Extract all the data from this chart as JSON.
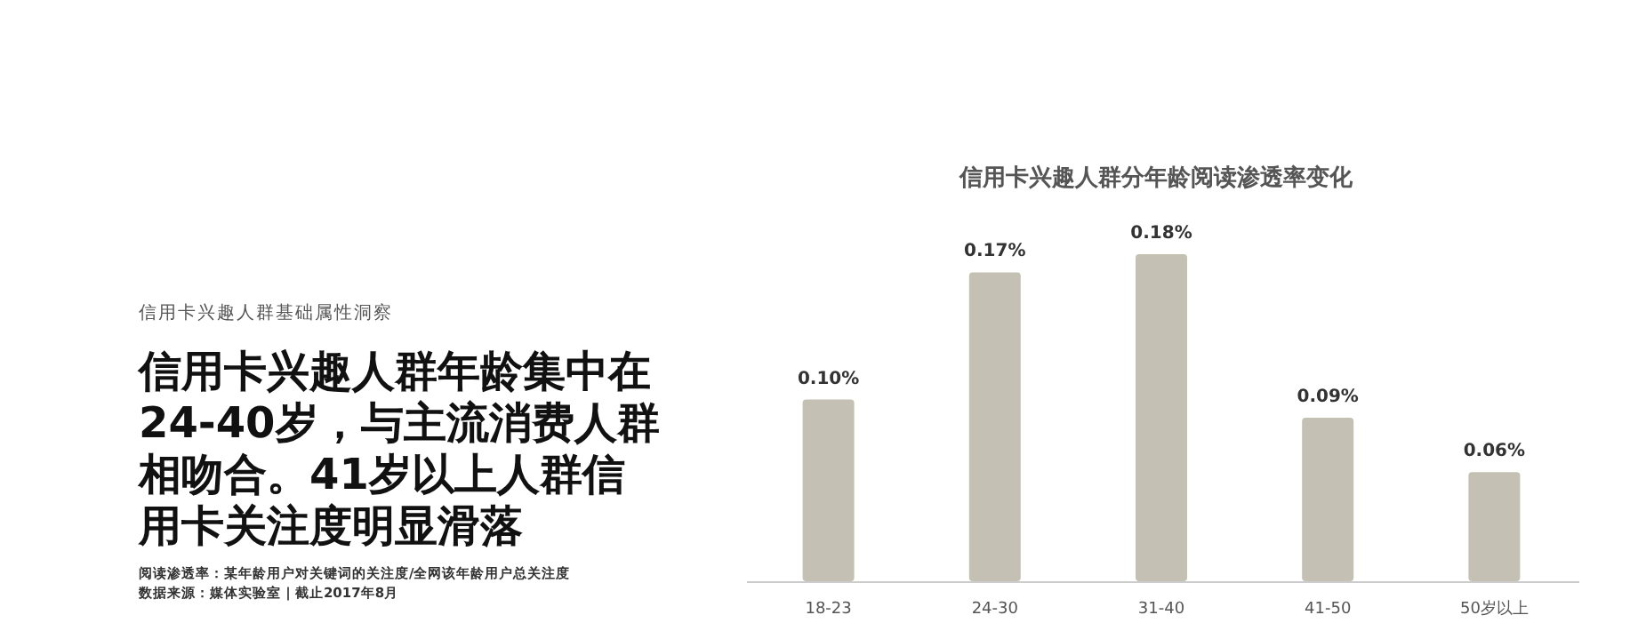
{
  "chart_data": {
    "type": "bar",
    "title": "信用卡兴趣人群分年龄阅读渗透率变化",
    "categories": [
      "18-23",
      "24-30",
      "31-40",
      "41-50",
      "50岁以上"
    ],
    "values": [
      0.1,
      0.17,
      0.18,
      0.09,
      0.06
    ],
    "value_labels": [
      "0.10%",
      "0.17%",
      "0.18%",
      "0.09%",
      "0.06%"
    ],
    "color": "#c4c1b4",
    "annotations": [
      "信用卡兴趣人群基础属性洞察",
      "信用卡兴趣人群年龄集中在24-40岁，与主流消费人群相吻合。41岁以上人群信用卡关注度明显滑落",
      "阅读渗透率：某年龄用户对关键词的关注度/全网该年龄用户总关注度",
      "数据来源：媒体实验室 | 截止2017年8月"
    ]
  }
}
